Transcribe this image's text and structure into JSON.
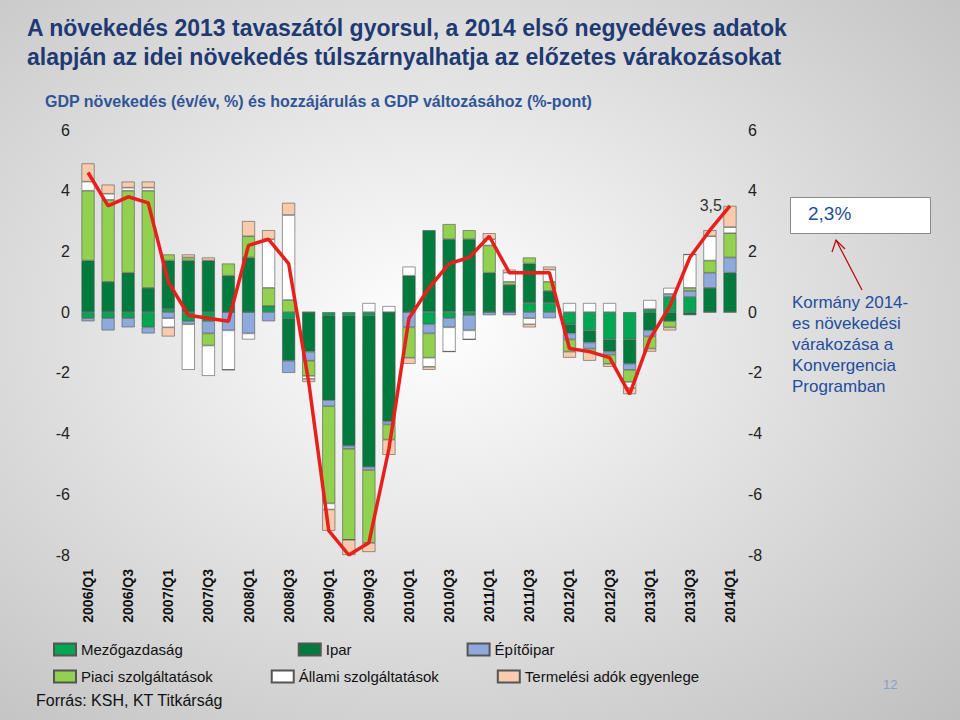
{
  "chart_data": {
    "type": "bar",
    "title": "A növekedés 2013 tavaszától gyorsul, a 2014 első negyedéves adatok alapján az idei növekedés túlszárnyalhatja az előzetes várakozásokat",
    "subtitle": "GDP növekedés (év/év, %) és hozzájárulás a GDP változásához (%-pont)",
    "categories": [
      "2006/Q1",
      null,
      "2006/Q3",
      null,
      "2007/Q1",
      null,
      "2007/Q3",
      null,
      "2008/Q1",
      null,
      "2008/Q3",
      null,
      "2009/Q1",
      null,
      "2009/Q3",
      null,
      "2010/Q1",
      null,
      "2010/Q3",
      null,
      "2011/Q1",
      null,
      "2011/Q3",
      null,
      "2012/Q1",
      null,
      "2012/Q3",
      null,
      "2013/Q1",
      null,
      "2013/Q3",
      null,
      "2014/Q1"
    ],
    "stacked": true,
    "grid": false,
    "legend": "bottom",
    "ylim": [
      -8,
      6
    ],
    "yticks": [
      -8,
      -6,
      -4,
      -2,
      0,
      2,
      4,
      6
    ],
    "y2lim": [
      -8,
      6
    ],
    "y2ticks": [
      -8,
      -6,
      -4,
      -2,
      0,
      2,
      4,
      6
    ],
    "series": [
      {
        "name": "Mezőgazdaság",
        "color": "#00A651",
        "values": [
          -0.2,
          -0.2,
          -0.2,
          -0.5,
          0.1,
          -0.3,
          -0.3,
          0,
          0,
          0.2,
          -0.2,
          0,
          -0.1,
          -0.1,
          -0.1,
          0,
          0,
          -0.4,
          -0.2,
          -0.1,
          0,
          0,
          0.3,
          0.3,
          -0.4,
          -0.6,
          -0.9,
          -0.9,
          0.1,
          0.5,
          0.5,
          0,
          0
        ]
      },
      {
        "name": "Ipar",
        "color": "#007A3D",
        "values": [
          1.7,
          1.0,
          1.3,
          0.8,
          1.6,
          1.7,
          1.7,
          1.2,
          1.8,
          0,
          -1.4,
          -1.3,
          -2.8,
          -4.3,
          -5.0,
          -3.6,
          1.2,
          2.7,
          2.4,
          2.4,
          1.3,
          0.9,
          1.3,
          0.4,
          -0.3,
          -0.4,
          -0.4,
          -0.8,
          -0.6,
          -0.3,
          -0.1,
          0.8,
          1.3
        ]
      },
      {
        "name": "Építőipar",
        "color": "#8EA9DB",
        "values": [
          -0.1,
          -0.4,
          -0.3,
          -0.2,
          -0.2,
          -0.1,
          -0.4,
          -0.6,
          -0.7,
          -0.3,
          -0.4,
          -0.3,
          -0.2,
          -0.1,
          -0.1,
          -0.1,
          -0.5,
          -0.3,
          -0.3,
          -0.5,
          -0.1,
          -0.1,
          -0.2,
          -0.2,
          -0.2,
          -0.2,
          -0.1,
          -0.2,
          -0.2,
          0.1,
          0.2,
          0.5,
          0.5
        ]
      },
      {
        "name": "Piaci szolgáltatások",
        "color": "#92D050",
        "values": [
          2.3,
          2.7,
          2.7,
          3.2,
          0.2,
          0.1,
          -0.4,
          0.4,
          0.7,
          0.6,
          0.4,
          -0.5,
          -3.2,
          -3.0,
          -2.4,
          -0.5,
          -1.0,
          -0.8,
          0.5,
          0.3,
          0.9,
          0.1,
          0.2,
          0.3,
          -0.4,
          -0.1,
          -0.3,
          -0.4,
          -0.4,
          -0.2,
          0.1,
          0.4,
          0.8
        ]
      },
      {
        "name": "Állami szolgáltatások",
        "color": "#FFFFFF",
        "values": [
          0.3,
          0.2,
          0.1,
          0.1,
          -0.3,
          -1.5,
          -1.0,
          -1.3,
          -0.2,
          1.6,
          2.8,
          -0.1,
          -0.2,
          0,
          0.3,
          0.2,
          0.3,
          -0.3,
          -0.8,
          -0.3,
          0.2,
          0.3,
          -0.2,
          0.4,
          0.3,
          0.3,
          0.3,
          -0.2,
          0.3,
          0.2,
          1.1,
          0.8,
          0.2
        ]
      },
      {
        "name": "Termelési adók egyenlege",
        "color": "#F8CBAD",
        "values": [
          0.6,
          0.3,
          0.2,
          0.2,
          -0.3,
          0.1,
          0.1,
          0,
          0.5,
          0.3,
          0.4,
          -0.1,
          -0.7,
          -0.5,
          -0.3,
          -0.5,
          -0.2,
          -0.1,
          0,
          0,
          0.2,
          0.1,
          -0.1,
          0.1,
          -0.2,
          -0.3,
          -0.1,
          -0.2,
          -0.1,
          -0.1,
          0,
          0.2,
          0.7
        ]
      },
      {
        "type": "line",
        "color": "#E8201C",
        "line_style": "solid",
        "marker": "none",
        "values": [
          4.6,
          3.5,
          3.8,
          3.6,
          1.0,
          -0.1,
          -0.2,
          -0.3,
          2.2,
          2.4,
          1.6,
          -2.3,
          -7.2,
          -8.0,
          -7.6,
          -4.5,
          -0.2,
          0.8,
          1.6,
          1.8,
          2.5,
          1.3,
          1.3,
          1.3,
          -1.2,
          -1.3,
          -1.5,
          -2.7,
          -0.9,
          0.2,
          1.8,
          2.7,
          3.5
        ],
        "value_labels": [
          null,
          null,
          null,
          null,
          null,
          null,
          null,
          null,
          null,
          null,
          null,
          null,
          null,
          null,
          null,
          null,
          null,
          null,
          null,
          null,
          null,
          null,
          null,
          null,
          null,
          null,
          null,
          null,
          null,
          null,
          null,
          null,
          "3,5"
        ]
      }
    ],
    "annotations": [
      "2,3%",
      "Kormány 2014-\nes növekedési\nvárakozása a\nKonvergencia\nProgramban"
    ],
    "source": "Forrás: KSH, KT Titkárság",
    "page_number": "12"
  }
}
